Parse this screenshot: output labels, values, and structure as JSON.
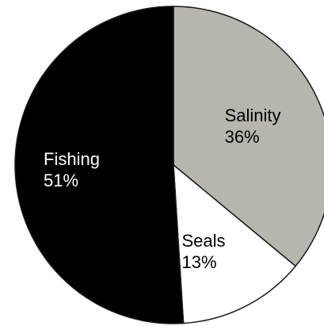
{
  "chart_data": {
    "type": "pie",
    "slices": [
      {
        "label": "Salinity",
        "percent_label": "36%",
        "value": 36,
        "color": "#b6b6ae",
        "text_color": "#000000"
      },
      {
        "label": "Seals",
        "percent_label": "13%",
        "value": 13,
        "color": "#ffffff",
        "text_color": "#000000"
      },
      {
        "label": "Fishing",
        "percent_label": "51%",
        "value": 51,
        "color": "#000000",
        "text_color": "#ffffff"
      }
    ]
  }
}
